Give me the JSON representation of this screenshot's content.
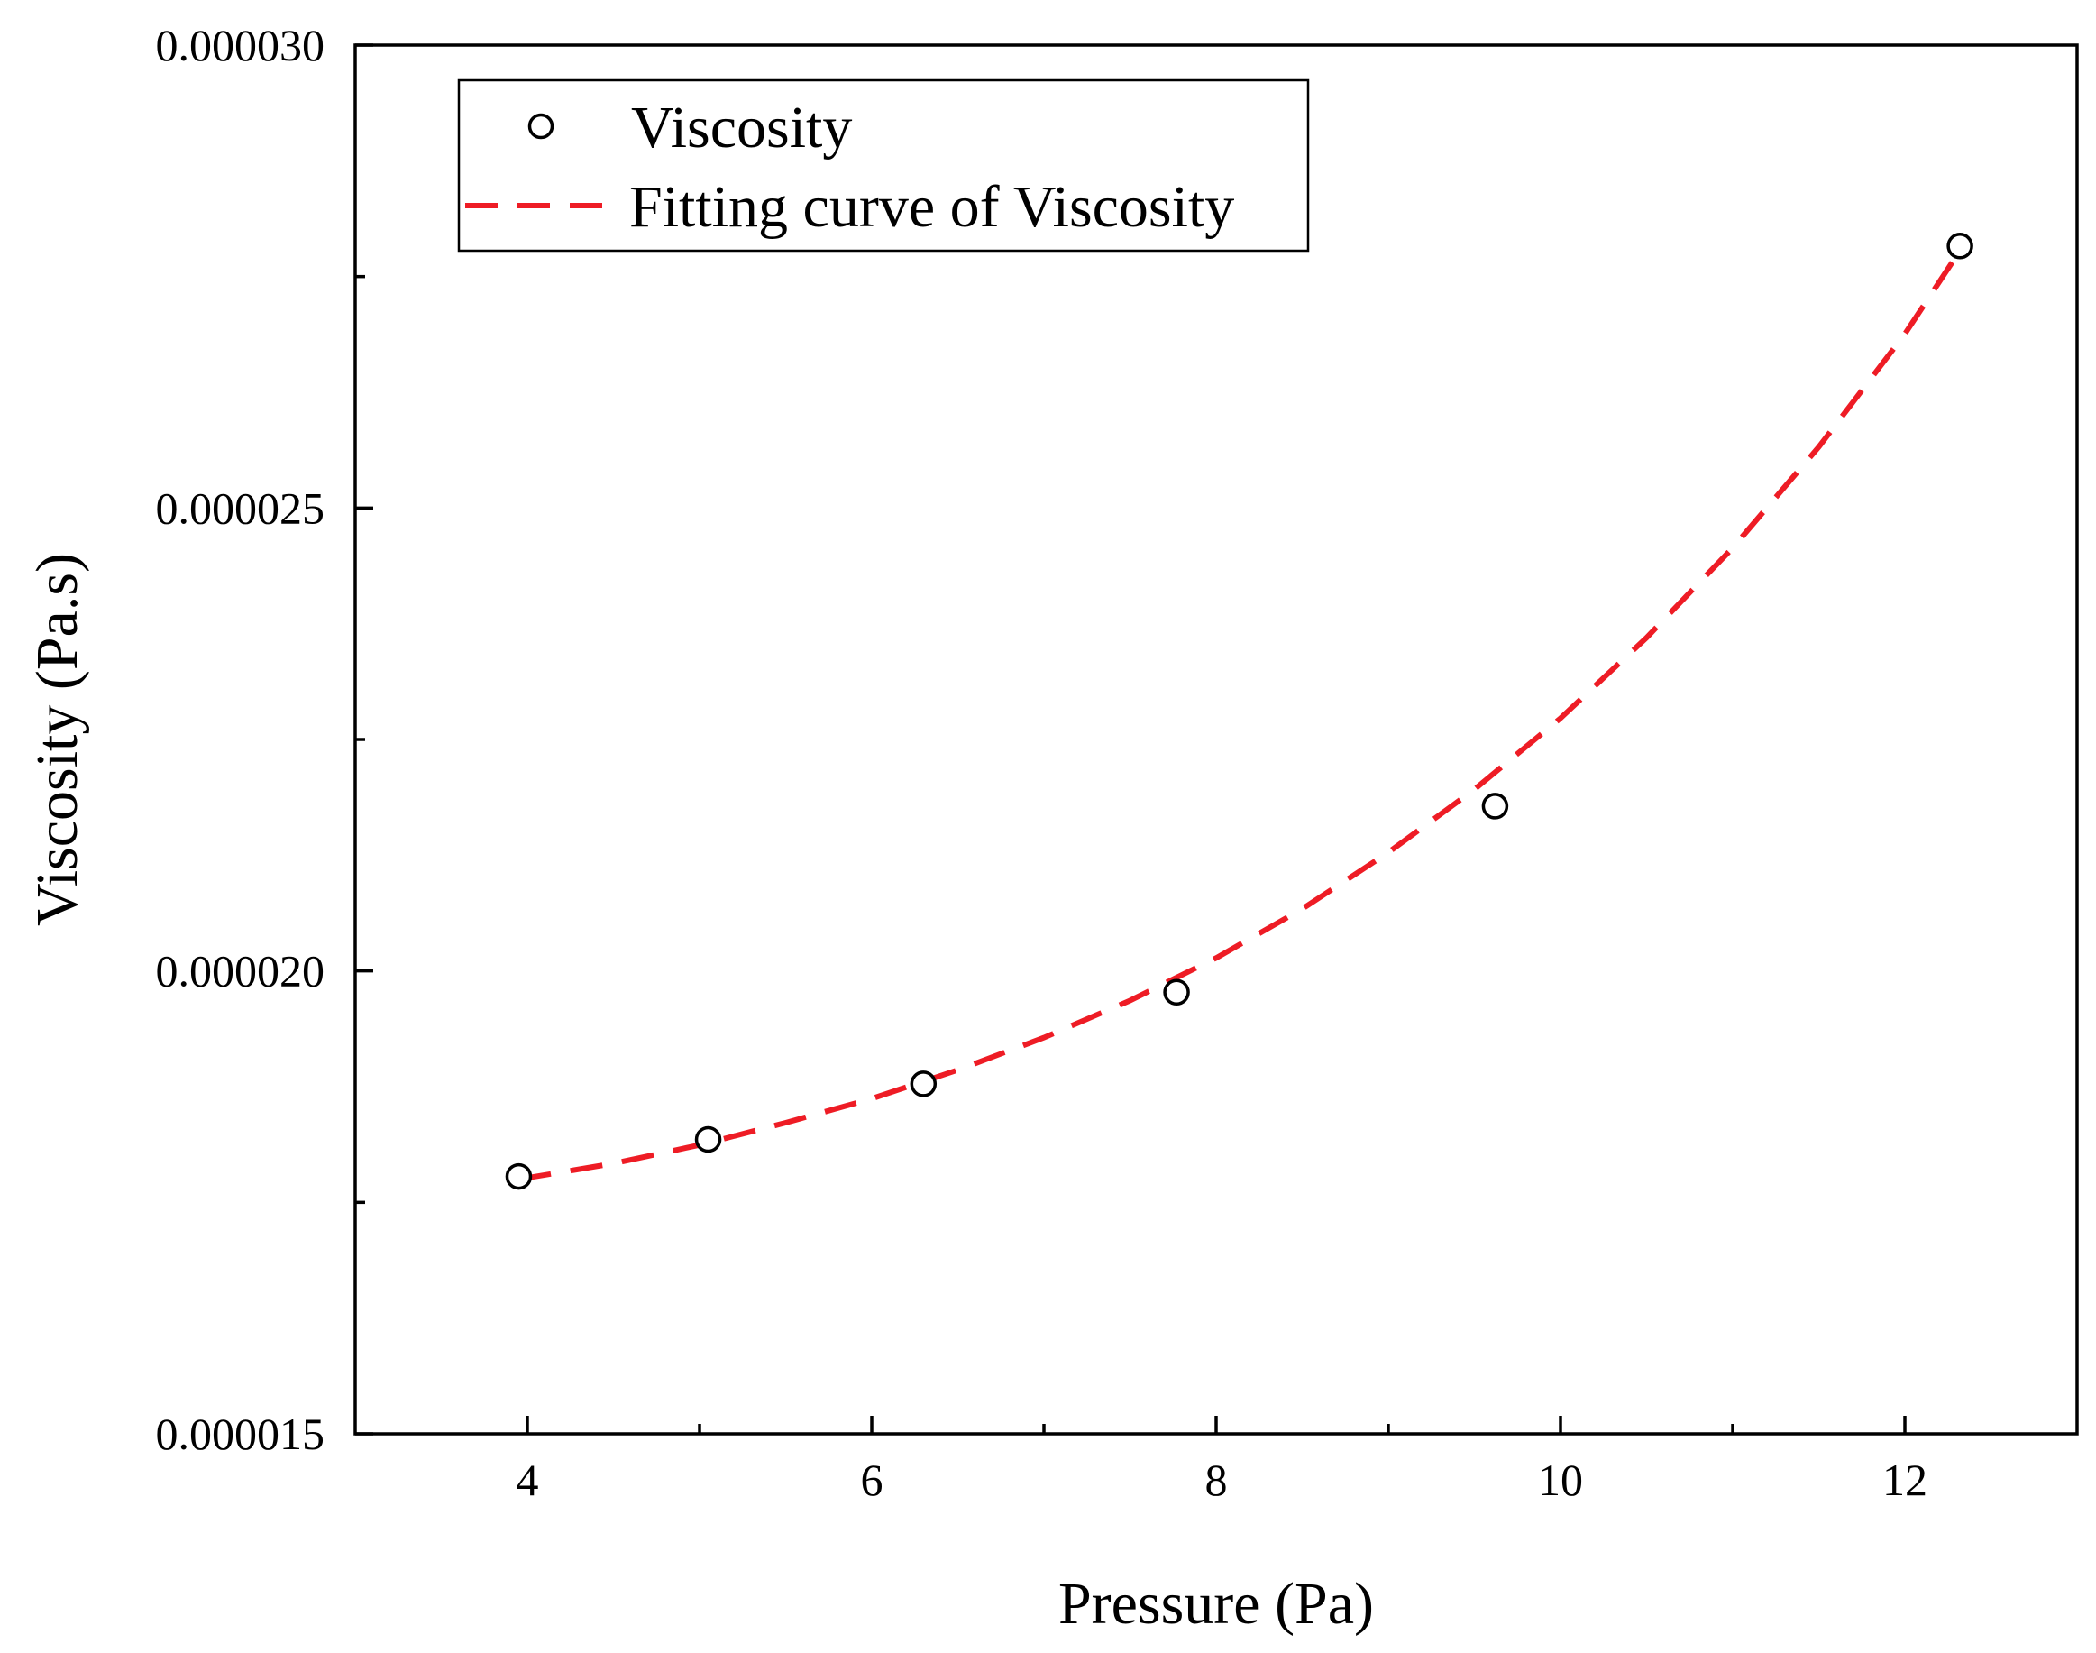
{
  "chart_data": {
    "type": "scatter",
    "title": "",
    "xlabel": "Pressure (Pa)",
    "ylabel": "Viscosity (Pa.s)",
    "xlim": [
      3,
      13
    ],
    "ylim": [
      1.5e-05,
      3e-05
    ],
    "x_ticks": [
      4,
      6,
      8,
      10,
      12
    ],
    "x_tick_labels": [
      "4",
      "6",
      "8",
      "10",
      "12"
    ],
    "x_minor_ticks": [
      5,
      7,
      9,
      11
    ],
    "y_ticks": [
      1.5e-05,
      2e-05,
      2.5e-05,
      3e-05
    ],
    "y_tick_labels": [
      "0.000015",
      "0.000020",
      "0.000025",
      "0.000030"
    ],
    "y_minor_ticks": [
      1.75e-05,
      2.25e-05,
      2.75e-05
    ],
    "series": [
      {
        "name": "Viscosity",
        "kind": "scatter",
        "x": [
          3.95,
          5.05,
          6.3,
          7.77,
          9.62,
          12.32
        ],
        "y": [
          1.778e-05,
          1.818e-05,
          1.878e-05,
          1.977e-05,
          2.178e-05,
          2.783e-05
        ]
      },
      {
        "name": "Fitting curve of Viscosity",
        "kind": "line",
        "style": "dashed",
        "color": "#ee1c25",
        "x": [
          3.95,
          4.5,
          5.0,
          5.5,
          6.0,
          6.5,
          7.0,
          7.5,
          8.0,
          8.5,
          9.0,
          9.5,
          10.0,
          10.5,
          11.0,
          11.5,
          12.0,
          12.32
        ],
        "y": [
          1.775e-05,
          1.792e-05,
          1.812e-05,
          1.836e-05,
          1.862e-05,
          1.893e-05,
          1.928e-05,
          1.968e-05,
          2.014e-05,
          2.067e-05,
          2.128e-05,
          2.196e-05,
          2.273e-05,
          2.36e-05,
          2.457e-05,
          2.566e-05,
          2.688e-05,
          2.778e-05
        ]
      }
    ],
    "legend": {
      "position": "top-left",
      "entries": [
        "Viscosity",
        "Fitting curve of Viscosity"
      ]
    },
    "grid": false
  }
}
